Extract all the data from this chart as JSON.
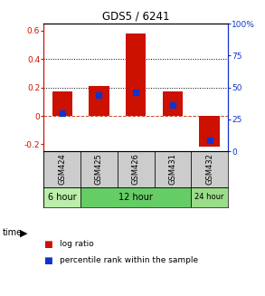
{
  "title": "GDS5 / 6241",
  "samples": [
    "GSM424",
    "GSM425",
    "GSM426",
    "GSM431",
    "GSM432"
  ],
  "log_ratio": [
    0.17,
    0.21,
    0.58,
    0.17,
    -0.22
  ],
  "percentile_rank": [
    30,
    44,
    46,
    36,
    9
  ],
  "bar_color": "#cc1100",
  "dot_color": "#1133cc",
  "ylim_left": [
    -0.25,
    0.65
  ],
  "ylim_right": [
    0,
    100
  ],
  "yticks_left": [
    -0.2,
    0.0,
    0.2,
    0.4,
    0.6
  ],
  "yticks_right": [
    0,
    25,
    50,
    75,
    100
  ],
  "ytick_labels_left": [
    "-0.2",
    "0",
    "0.2",
    "0.4",
    "0.6"
  ],
  "ytick_labels_right": [
    "0",
    "25",
    "50",
    "75",
    "100%"
  ],
  "time_groups": [
    {
      "label": "6 hour",
      "indices": [
        0
      ],
      "color": "#bbeeaa"
    },
    {
      "label": "12 hour",
      "indices": [
        1,
        2,
        3
      ],
      "color": "#66cc66"
    },
    {
      "label": "24 hour",
      "indices": [
        4
      ],
      "color": "#99dd88"
    }
  ],
  "legend_bar_label": "log ratio",
  "legend_dot_label": "percentile rank within the sample",
  "bar_width": 0.55,
  "sample_box_color": "#cccccc",
  "bg_color": "#ffffff"
}
